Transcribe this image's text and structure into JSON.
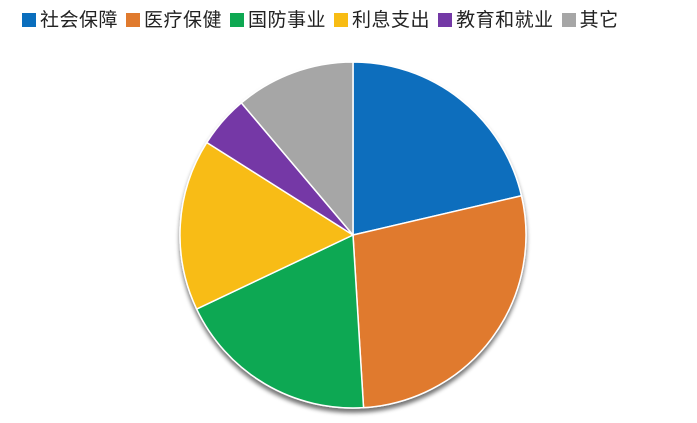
{
  "chart_data": {
    "type": "pie",
    "title": "",
    "legend_position": "top",
    "slices": [
      {
        "label": "社会保障",
        "value": 22.0,
        "color": "#0A6EBD"
      },
      {
        "label": "医疗保健",
        "value": 28.5,
        "color": "#E07A2E"
      },
      {
        "label": "国防事业",
        "value": 19.5,
        "color": "#0EA852"
      },
      {
        "label": "利息支出",
        "value": 16.5,
        "color": "#F8BC13"
      },
      {
        "label": "教育和就业",
        "value": 5.0,
        "color": "#7439A6"
      },
      {
        "label": "其它",
        "value": 11.5,
        "color": "#A6A6A6"
      }
    ]
  }
}
